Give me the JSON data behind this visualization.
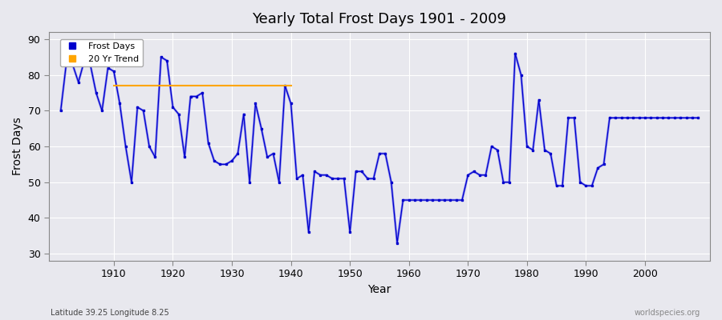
{
  "title": "Yearly Total Frost Days 1901 - 2009",
  "xlabel": "Year",
  "ylabel": "Frost Days",
  "subtitle": "Latitude 39.25 Longitude 8.25",
  "watermark": "worldspecies.org",
  "ylim": [
    28,
    92
  ],
  "xlim": [
    1899,
    2011
  ],
  "yticks": [
    30,
    40,
    50,
    60,
    70,
    80,
    90
  ],
  "xticks": [
    1910,
    1920,
    1930,
    1940,
    1950,
    1960,
    1970,
    1980,
    1990,
    2000
  ],
  "line_color": "#0000cc",
  "line_color_light": "#8888ee",
  "bg_color": "#e8e8ee",
  "legend_entries": [
    "Frost Days",
    "20 Yr Trend"
  ],
  "legend_colors": [
    "#0000cc",
    "#ffa500"
  ],
  "years": [
    1901,
    1902,
    1903,
    1904,
    1905,
    1906,
    1907,
    1908,
    1909,
    1910,
    1911,
    1912,
    1913,
    1914,
    1915,
    1916,
    1917,
    1918,
    1919,
    1920,
    1921,
    1922,
    1923,
    1924,
    1925,
    1926,
    1927,
    1928,
    1929,
    1930,
    1931,
    1932,
    1933,
    1934,
    1935,
    1936,
    1937,
    1938,
    1939,
    1940,
    1941,
    1942,
    1943,
    1944,
    1945,
    1946,
    1947,
    1948,
    1949,
    1950,
    1951,
    1952,
    1953,
    1954,
    1955,
    1956,
    1957,
    1958,
    1959,
    1960,
    1961,
    1962,
    1963,
    1964,
    1965,
    1966,
    1967,
    1968,
    1969,
    1970,
    1971,
    1972,
    1973,
    1974,
    1975,
    1976,
    1977,
    1978,
    1979,
    1980,
    1981,
    1982,
    1983,
    1984,
    1985,
    1986,
    1987,
    1988,
    1989,
    1990,
    1991,
    1992,
    1993,
    1994,
    1995,
    1996,
    1997,
    1998,
    1999,
    2000,
    2001,
    2002,
    2003,
    2004,
    2005,
    2006,
    2007,
    2008,
    2009
  ],
  "values": [
    70,
    84,
    83,
    78,
    84,
    83,
    75,
    70,
    82,
    81,
    72,
    60,
    50,
    71,
    70,
    60,
    57,
    85,
    84,
    71,
    69,
    57,
    74,
    74,
    75,
    61,
    56,
    55,
    55,
    56,
    58,
    69,
    50,
    72,
    65,
    57,
    58,
    50,
    77,
    72,
    51,
    52,
    36,
    53,
    52,
    52,
    51,
    51,
    51,
    36,
    53,
    53,
    51,
    51,
    58,
    58,
    50,
    33,
    45,
    45,
    45,
    45,
    45,
    45,
    45,
    45,
    45,
    45,
    45,
    52,
    53,
    52,
    52,
    60,
    59,
    50,
    50,
    86,
    80,
    60,
    59,
    73,
    59,
    58,
    49,
    49,
    68,
    68,
    50,
    49,
    49,
    54,
    55,
    68,
    68,
    68,
    68,
    68,
    68,
    68,
    68,
    68,
    68,
    68,
    68,
    68,
    68,
    68,
    68
  ],
  "trend_years": [
    1910,
    1920,
    1930,
    1940
  ],
  "trend_values": [
    77,
    77,
    77,
    77
  ]
}
